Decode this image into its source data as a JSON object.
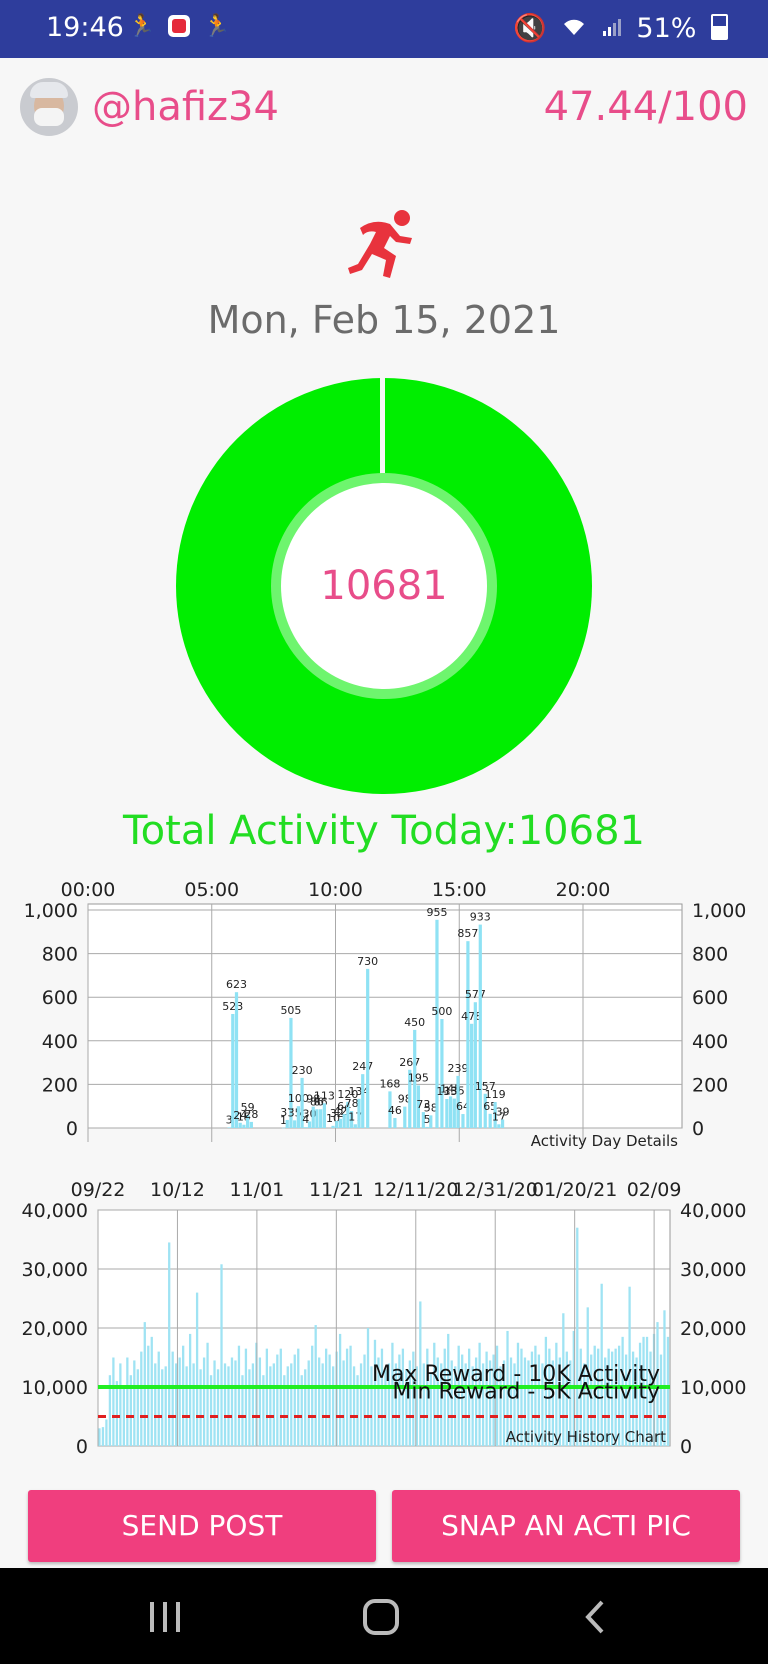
{
  "status_bar": {
    "time": "19:46",
    "battery": "51%",
    "icons": [
      "activity-app-icon",
      "red-app-icon",
      "activity-app-icon",
      "mute-icon",
      "wifi-icon",
      "signal-icon",
      "battery-icon"
    ]
  },
  "header": {
    "username": "@hafiz34",
    "score": "47.44/100"
  },
  "date": "Mon, Feb 15, 2021",
  "donut": {
    "value": "10681",
    "progress": 0.99
  },
  "total_activity_label": "Total Activity Today:10681",
  "chart_data": [
    {
      "type": "bar",
      "annotation": "Activity Day Details",
      "x_axis_labels": [
        "00:00",
        "05:00",
        "10:00",
        "15:00",
        "20:00"
      ],
      "y_ticks": [
        "1,000",
        "800",
        "600",
        "400",
        "200",
        "0"
      ],
      "ylim": [
        0,
        1000
      ],
      "xlim_hours": [
        0,
        24
      ],
      "grid": true,
      "bars": [
        {
          "hour": 5.7,
          "value": 3
        },
        {
          "hour": 5.85,
          "value": 523
        },
        {
          "hour": 6.0,
          "value": 623
        },
        {
          "hour": 6.15,
          "value": 24
        },
        {
          "hour": 6.3,
          "value": 15
        },
        {
          "hour": 6.45,
          "value": 59
        },
        {
          "hour": 6.6,
          "value": 28
        },
        {
          "hour": 7.9,
          "value": 1
        },
        {
          "hour": 8.05,
          "value": 37
        },
        {
          "hour": 8.2,
          "value": 505
        },
        {
          "hour": 8.35,
          "value": 35
        },
        {
          "hour": 8.5,
          "value": 100
        },
        {
          "hour": 8.65,
          "value": 230
        },
        {
          "hour": 8.8,
          "value": 4
        },
        {
          "hour": 8.95,
          "value": 30
        },
        {
          "hour": 9.1,
          "value": 98
        },
        {
          "hour": 9.25,
          "value": 86
        },
        {
          "hour": 9.4,
          "value": 86
        },
        {
          "hour": 9.55,
          "value": 113
        },
        {
          "hour": 9.9,
          "value": 10
        },
        {
          "hour": 10.05,
          "value": 32
        },
        {
          "hour": 10.2,
          "value": 42
        },
        {
          "hour": 10.35,
          "value": 64
        },
        {
          "hour": 10.5,
          "value": 120
        },
        {
          "hour": 10.65,
          "value": 78
        },
        {
          "hour": 10.8,
          "value": 17
        },
        {
          "hour": 10.95,
          "value": 134
        },
        {
          "hour": 11.1,
          "value": 247
        },
        {
          "hour": 11.3,
          "value": 730
        },
        {
          "hour": 12.2,
          "value": 168
        },
        {
          "hour": 12.4,
          "value": 46
        },
        {
          "hour": 12.8,
          "value": 98
        },
        {
          "hour": 13.0,
          "value": 267
        },
        {
          "hour": 13.2,
          "value": 450
        },
        {
          "hour": 13.35,
          "value": 195
        },
        {
          "hour": 13.55,
          "value": 73
        },
        {
          "hour": 13.7,
          "value": 5
        },
        {
          "hour": 13.85,
          "value": 58
        },
        {
          "hour": 14.1,
          "value": 955
        },
        {
          "hour": 14.3,
          "value": 500
        },
        {
          "hour": 14.5,
          "value": 133
        },
        {
          "hour": 14.65,
          "value": 145
        },
        {
          "hour": 14.8,
          "value": 135
        },
        {
          "hour": 14.95,
          "value": 239
        },
        {
          "hour": 15.15,
          "value": 64
        },
        {
          "hour": 15.35,
          "value": 857
        },
        {
          "hour": 15.5,
          "value": 478
        },
        {
          "hour": 15.65,
          "value": 577
        },
        {
          "hour": 15.85,
          "value": 933
        },
        {
          "hour": 16.05,
          "value": 157
        },
        {
          "hour": 16.25,
          "value": 65
        },
        {
          "hour": 16.45,
          "value": 119
        },
        {
          "hour": 16.6,
          "value": 17
        },
        {
          "hour": 16.75,
          "value": 39
        }
      ]
    },
    {
      "type": "bar",
      "annotation": "Activity History Chart",
      "x_axis_labels": [
        "09/22",
        "10/12",
        "11/01",
        "11/21",
        "12/11/20",
        "12/31/20",
        "01/20/21",
        "02/09"
      ],
      "y_ticks": [
        "40,000",
        "30,000",
        "20,000",
        "10,000",
        "0"
      ],
      "ylim": [
        0,
        40000
      ],
      "grid": true,
      "thresholds": [
        {
          "label": "Max Reward - 10K Activity",
          "value": 10000,
          "color": "#22ee22",
          "style": "solid"
        },
        {
          "label": "Min Reward - 5K Activity",
          "value": 5000,
          "color": "#e02020",
          "style": "dashed"
        }
      ],
      "values": [
        3000,
        3200,
        4500,
        12000,
        15000,
        11000,
        14000,
        10000,
        15000,
        12000,
        14500,
        13000,
        16000,
        21000,
        17000,
        18500,
        14000,
        16000,
        13000,
        13500,
        34500,
        16000,
        14000,
        15000,
        17000,
        13500,
        19000,
        14000,
        26000,
        13000,
        15000,
        17500,
        12000,
        14500,
        13000,
        30800,
        14000,
        13500,
        15000,
        14500,
        17000,
        12000,
        16500,
        13000,
        14000,
        17500,
        15000,
        12000,
        16500,
        13500,
        14000,
        15500,
        16500,
        12000,
        13500,
        14000,
        15500,
        16500,
        12000,
        13000,
        14500,
        17000,
        20500,
        15000,
        14000,
        16500,
        15500,
        13500,
        16000,
        19000,
        14500,
        16500,
        17000,
        13500,
        12000,
        14000,
        15500,
        20000,
        13500,
        18000,
        15000,
        16500,
        13000,
        14000,
        17500,
        14000,
        15500,
        16500,
        13000,
        14500,
        16000,
        13500,
        24500,
        14000,
        16500,
        12500,
        17500,
        15000,
        14000,
        16500,
        19000,
        14500,
        13500,
        17000,
        15500,
        14000,
        16500,
        13500,
        15000,
        17500,
        14000,
        16000,
        14500,
        15500,
        17000,
        13500,
        14500,
        19500,
        15000,
        14000,
        17500,
        16500,
        15000,
        14500,
        16000,
        17000,
        15500,
        14000,
        18500,
        16500,
        14500,
        17500,
        15000,
        22500,
        16000,
        14500,
        19500,
        37000,
        16500,
        14000,
        23500,
        15500,
        17000,
        16500,
        27500,
        15000,
        16500,
        16000,
        16500,
        17000,
        18500,
        15500,
        27000,
        16000,
        15000,
        17500,
        18500,
        18500,
        16000,
        19000,
        21000,
        15500,
        23000,
        18500
      ]
    }
  ],
  "buttons": {
    "send_post": "SEND POST",
    "snap_pic": "SNAP AN ACTI PIC"
  },
  "nav": [
    "recent-apps-icon",
    "home-icon",
    "back-icon"
  ]
}
